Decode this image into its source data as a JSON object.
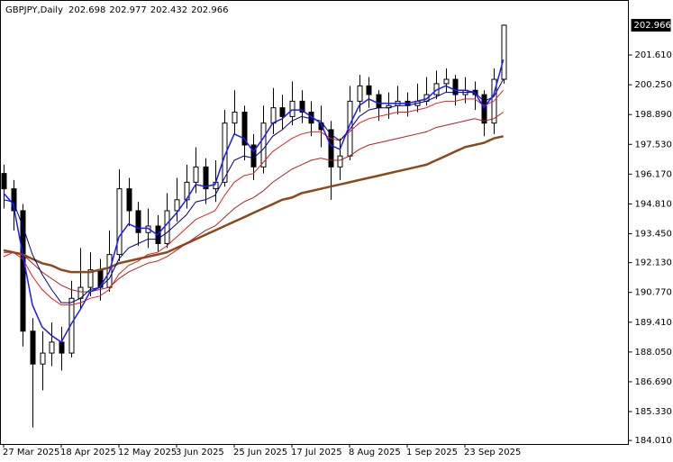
{
  "chart_data": {
    "type": "candlestick",
    "title": "GBPJPY,Daily",
    "header_values": [
      202.698,
      202.977,
      202.432,
      202.966
    ],
    "last_price": 202.966,
    "categories": [
      "27 Mar 2025",
      null,
      null,
      null,
      null,
      null,
      "18 Apr 2025",
      null,
      null,
      null,
      null,
      null,
      "12 May 2025",
      null,
      null,
      null,
      null,
      null,
      "3 Jun 2025",
      null,
      null,
      null,
      null,
      null,
      "25 Jun 2025",
      null,
      null,
      null,
      null,
      null,
      "17 Jul 2025",
      null,
      null,
      null,
      null,
      null,
      "8 Aug 2025",
      null,
      null,
      null,
      null,
      null,
      "1 Sep 2025",
      null,
      null,
      null,
      null,
      null,
      "23 Sep 2025",
      null,
      null,
      null,
      null
    ],
    "open": [
      196.2,
      195.5,
      194.5,
      189.0,
      187.5,
      188.0,
      188.5,
      188.0,
      190.5,
      191.0,
      191.8,
      191.0,
      192.5,
      195.5,
      194.5,
      193.5,
      193.8,
      193.0,
      194.5,
      195.0,
      195.8,
      196.5,
      195.5,
      195.8,
      198.5,
      199.0,
      197.5,
      196.5,
      198.5,
      199.2,
      198.8,
      199.5,
      199.0,
      198.5,
      198.2,
      196.5,
      197.0,
      199.5,
      200.2,
      199.8,
      199.2,
      199.3,
      199.5,
      199.3,
      199.5,
      199.8,
      200.3,
      200.5,
      199.8,
      200.0,
      199.8,
      198.5,
      200.5
    ],
    "high": [
      196.6,
      195.9,
      194.8,
      189.6,
      189.0,
      189.4,
      189.2,
      191.3,
      192.8,
      192.6,
      192.3,
      193.6,
      196.4,
      196.0,
      194.9,
      194.6,
      194.3,
      195.3,
      196.0,
      196.6,
      197.4,
      196.9,
      196.8,
      199.1,
      200.0,
      199.3,
      198.0,
      199.3,
      200.1,
      199.8,
      200.4,
      200.0,
      199.5,
      199.3,
      198.6,
      197.8,
      200.2,
      200.7,
      200.6,
      200.0,
      199.9,
      200.2,
      199.9,
      200.3,
      200.6,
      200.9,
      201.0,
      200.7,
      200.6,
      200.4,
      200.0,
      201.0,
      203.0
    ],
    "low": [
      194.6,
      193.6,
      188.3,
      184.6,
      186.3,
      187.4,
      187.2,
      187.8,
      190.0,
      190.6,
      190.4,
      190.8,
      192.2,
      193.8,
      192.9,
      192.8,
      192.6,
      192.8,
      194.0,
      194.6,
      195.3,
      194.8,
      194.9,
      195.6,
      198.0,
      196.8,
      195.9,
      196.2,
      198.0,
      198.2,
      198.4,
      198.5,
      197.9,
      197.4,
      195.0,
      195.9,
      196.8,
      199.0,
      199.2,
      198.6,
      198.7,
      198.9,
      198.8,
      199.0,
      199.3,
      199.6,
      199.9,
      199.3,
      199.4,
      199.1,
      197.9,
      198.0,
      200.3
    ],
    "close": [
      195.5,
      194.5,
      189.0,
      187.5,
      188.0,
      188.5,
      188.0,
      190.5,
      191.0,
      191.8,
      191.0,
      192.5,
      195.5,
      194.5,
      193.5,
      193.8,
      193.0,
      194.5,
      195.0,
      195.8,
      196.5,
      195.5,
      195.8,
      198.5,
      199.0,
      197.5,
      196.5,
      198.5,
      199.2,
      198.8,
      199.5,
      199.0,
      198.5,
      198.2,
      196.5,
      197.0,
      199.5,
      200.2,
      199.8,
      199.2,
      199.3,
      199.5,
      199.3,
      199.5,
      199.8,
      200.3,
      200.5,
      199.8,
      200.0,
      199.8,
      198.5,
      200.5,
      202.97
    ],
    "up_color": "#ffffff",
    "down_color": "#000000",
    "series": [
      {
        "color": "#8b4a1c",
        "width": 2.5,
        "values": [
          192.7,
          192.6,
          192.5,
          192.3,
          192.1,
          192.0,
          191.8,
          191.7,
          191.7,
          191.7,
          191.8,
          191.9,
          192.1,
          192.2,
          192.3,
          192.4,
          192.5,
          192.6,
          192.8,
          193.0,
          193.2,
          193.4,
          193.6,
          193.8,
          194.0,
          194.2,
          194.4,
          194.6,
          194.8,
          195.0,
          195.1,
          195.3,
          195.4,
          195.5,
          195.6,
          195.7,
          195.8,
          195.9,
          196.0,
          196.1,
          196.2,
          196.3,
          196.4,
          196.5,
          196.6,
          196.8,
          197.0,
          197.2,
          197.4,
          197.5,
          197.6,
          197.8,
          197.9
        ]
      },
      {
        "color": "#b22222",
        "width": 1,
        "values": [
          192.6,
          192.6,
          192.5,
          192.1,
          191.7,
          191.4,
          191.1,
          190.9,
          190.8,
          190.8,
          190.9,
          191.0,
          191.4,
          191.7,
          191.9,
          192.1,
          192.2,
          192.4,
          192.7,
          193.0,
          193.3,
          193.6,
          193.8,
          194.2,
          194.6,
          194.9,
          195.1,
          195.4,
          195.8,
          196.1,
          196.4,
          196.6,
          196.8,
          196.9,
          196.8,
          196.8,
          197.0,
          197.3,
          197.5,
          197.6,
          197.7,
          197.8,
          197.9,
          198.0,
          198.1,
          198.3,
          198.4,
          198.5,
          198.6,
          198.7,
          198.6,
          198.7,
          199.0
        ]
      },
      {
        "color": "#e02020",
        "width": 1,
        "values": [
          192.4,
          192.6,
          192.3,
          191.5,
          190.9,
          190.5,
          190.2,
          190.2,
          190.3,
          190.5,
          190.6,
          190.9,
          191.6,
          192.0,
          192.2,
          192.5,
          192.6,
          192.9,
          193.3,
          193.7,
          194.1,
          194.3,
          194.5,
          195.2,
          195.8,
          196.1,
          196.2,
          196.7,
          197.2,
          197.5,
          197.8,
          198.0,
          198.1,
          198.1,
          197.8,
          197.7,
          198.1,
          198.5,
          198.7,
          198.8,
          198.9,
          199.0,
          199.0,
          199.1,
          199.2,
          199.4,
          199.5,
          199.5,
          199.6,
          199.6,
          199.3,
          199.5,
          200.0
        ]
      },
      {
        "color": "#000080",
        "width": 1,
        "values": [
          195.0,
          194.9,
          193.8,
          192.5,
          191.6,
          190.9,
          190.3,
          190.3,
          190.5,
          190.9,
          191.0,
          191.4,
          192.3,
          192.8,
          193.0,
          193.2,
          193.2,
          193.5,
          193.9,
          194.3,
          194.9,
          195.0,
          195.2,
          196.0,
          196.8,
          197.0,
          196.9,
          197.3,
          197.9,
          198.2,
          198.6,
          198.8,
          198.7,
          198.6,
          198.0,
          197.7,
          198.2,
          198.8,
          199.1,
          199.2,
          199.2,
          199.3,
          199.3,
          199.4,
          199.5,
          199.7,
          199.9,
          199.9,
          199.9,
          199.9,
          199.5,
          199.7,
          200.5
        ]
      },
      {
        "color": "#1a1aff",
        "width": 1.5,
        "values": [
          195.3,
          194.8,
          192.5,
          190.2,
          189.2,
          188.8,
          188.5,
          189.3,
          190.0,
          190.8,
          191.0,
          191.7,
          193.3,
          193.9,
          193.7,
          193.7,
          193.4,
          193.9,
          194.4,
          195.0,
          195.7,
          195.6,
          195.7,
          197.0,
          198.0,
          197.8,
          197.2,
          197.8,
          198.5,
          198.7,
          199.1,
          199.1,
          198.8,
          198.5,
          197.5,
          197.3,
          198.4,
          199.3,
          199.6,
          199.4,
          199.4,
          199.4,
          199.4,
          199.5,
          199.6,
          200.0,
          200.2,
          200.0,
          200.0,
          199.9,
          199.2,
          199.8,
          201.4
        ]
      }
    ],
    "ylim": [
      183.85,
      204.12
    ],
    "yticks": [
      {
        "value": 184.01,
        "label": "184.010"
      },
      {
        "value": 185.33,
        "label": "185.330"
      },
      {
        "value": 186.69,
        "label": "186.690"
      },
      {
        "value": 188.05,
        "label": "188.050"
      },
      {
        "value": 189.41,
        "label": "189.410"
      },
      {
        "value": 190.77,
        "label": "190.770"
      },
      {
        "value": 192.13,
        "label": "192.130"
      },
      {
        "value": 193.45,
        "label": "193.450"
      },
      {
        "value": 194.81,
        "label": "194.810"
      },
      {
        "value": 196.17,
        "label": "196.170"
      },
      {
        "value": 197.53,
        "label": "197.530"
      },
      {
        "value": 198.89,
        "label": "198.890"
      },
      {
        "value": 200.25,
        "label": "200.250"
      },
      {
        "value": 201.61,
        "label": "201.610"
      }
    ]
  }
}
